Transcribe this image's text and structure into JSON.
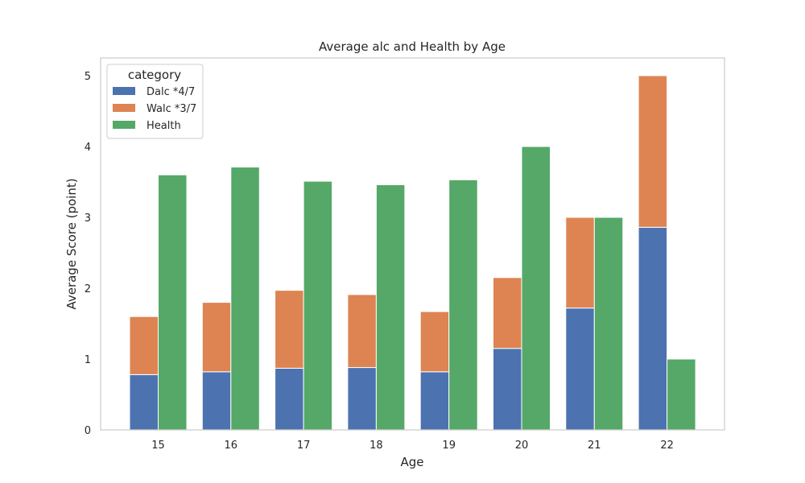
{
  "chart_data": {
    "type": "bar",
    "title": "Average alc and Health by Age",
    "xlabel": "Age",
    "ylabel": "Average Score (point)",
    "categories": [
      "15",
      "16",
      "17",
      "18",
      "19",
      "20",
      "21",
      "22"
    ],
    "ylim": [
      0,
      5.25
    ],
    "yticks": [
      "0",
      "1",
      "2",
      "3",
      "4",
      "5"
    ],
    "grid": false,
    "legend": {
      "title": "category",
      "placement": "top-left",
      "entries": [
        "Dalc *4/7",
        "Walc *3/7",
        "Health"
      ]
    },
    "series": [
      {
        "name": "Dalc *4/7",
        "stack": "alc",
        "color": "#4c72b0",
        "values": [
          0.78,
          0.82,
          0.87,
          0.88,
          0.82,
          1.15,
          1.72,
          2.86
        ]
      },
      {
        "name": "Walc *3/7",
        "stack": "alc",
        "color": "#dd8452",
        "values": [
          0.82,
          0.98,
          1.1,
          1.03,
          0.85,
          1.0,
          1.28,
          2.14
        ]
      },
      {
        "name": "Health",
        "stack": "health",
        "color": "#55a868",
        "values": [
          3.6,
          3.71,
          3.51,
          3.46,
          3.53,
          4.0,
          3.0,
          1.0
        ]
      }
    ]
  }
}
